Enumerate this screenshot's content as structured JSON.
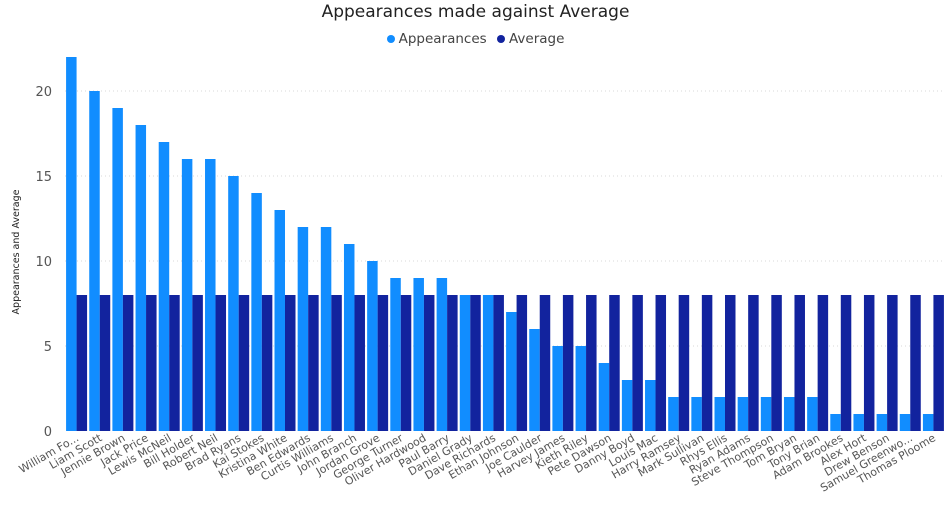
{
  "chart_data": {
    "type": "bar",
    "title": "Appearances made against Average",
    "ylabel": "Appearances and Average",
    "xlabel": "",
    "ylim": [
      0,
      22.5
    ],
    "yticks": [
      0,
      5,
      10,
      15,
      20
    ],
    "grid": true,
    "legend_position": "top-center",
    "categories": [
      "William Fo...",
      "Liam Scott",
      "Jennie Brown",
      "Jack Price",
      "Lewis McNeil",
      "Bill Holder",
      "Robert Neil",
      "Brad Ryans",
      "Kai Stokes",
      "Kristina White",
      "Ben Edwards",
      "Curtis Williams",
      "John Branch",
      "Jordan Grove",
      "George Turner",
      "Oliver Hardwood",
      "Paul Barry",
      "Daniel Grady",
      "Dave Richards",
      "Ethan Johnson",
      "Joe Caulder",
      "Harvey James",
      "Kieth Riley",
      "Pete Dawson",
      "Danny Boyd",
      "Louis Mac",
      "Harry Ramsey",
      "Mark Sullivan",
      "Rhys Ellis",
      "Ryan Adams",
      "Steve Thompson",
      "Tom Bryan",
      "Tony Brian",
      "Adam Brookes",
      "Alex Hort",
      "Drew Benson",
      "Samuel Greenwo...",
      "Thomas Ploome"
    ],
    "series": [
      {
        "name": "Appearances",
        "color": "#118DFF",
        "values": [
          22,
          20,
          19,
          18,
          17,
          16,
          16,
          15,
          14,
          13,
          12,
          12,
          11,
          10,
          9,
          9,
          9,
          8,
          8,
          7,
          6,
          5,
          5,
          4,
          3,
          3,
          2,
          2,
          2,
          2,
          2,
          2,
          2,
          1,
          1,
          1,
          1,
          1
        ]
      },
      {
        "name": "Average",
        "color": "#12239E",
        "values": [
          8,
          8,
          8,
          8,
          8,
          8,
          8,
          8,
          8,
          8,
          8,
          8,
          8,
          8,
          8,
          8,
          8,
          8,
          8,
          8,
          8,
          8,
          8,
          8,
          8,
          8,
          8,
          8,
          8,
          8,
          8,
          8,
          8,
          8,
          8,
          8,
          8,
          8
        ]
      }
    ]
  }
}
